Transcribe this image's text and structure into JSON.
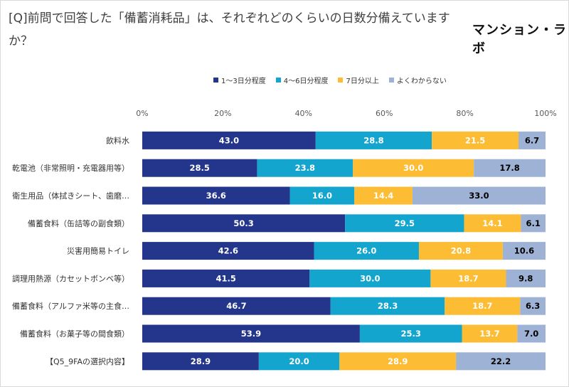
{
  "title": "[Q]前問で回答した「備蓄消耗品」は、それぞれどのくらいの日数分備えていますか？",
  "logo": "マンション・ラボ",
  "colors": {
    "series1": "#24368C",
    "series2": "#14A5CF",
    "series3": "#FCBC33",
    "series4": "#9DB2D4"
  },
  "chart_data": {
    "type": "bar",
    "orientation": "horizontal",
    "stacked": "percent",
    "categories": [
      "飲料水",
      "乾電池（非常照明・充電器用等）",
      "衛生用品（体拭きシート、歯磨…",
      "備蓄食料（缶詰等の副食類）",
      "災害用簡易トイレ",
      "調理用熱源（カセットボンベ等）",
      "備蓄食料（アルファ米等の主食…",
      "備蓄食料（お菓子等の間食類）",
      "【Q5_9FAの選択内容】"
    ],
    "series": [
      {
        "name": "1～3日分程度",
        "values": [
          43.0,
          28.5,
          36.6,
          50.3,
          42.6,
          41.5,
          46.7,
          53.9,
          28.9
        ]
      },
      {
        "name": "4～6日分程度",
        "values": [
          28.8,
          23.8,
          16.0,
          29.5,
          26.0,
          30.0,
          28.3,
          25.3,
          20.0
        ]
      },
      {
        "name": "7日分以上",
        "values": [
          21.5,
          30.0,
          14.4,
          14.1,
          20.8,
          18.7,
          18.7,
          13.7,
          28.9
        ]
      },
      {
        "name": "よくわからない",
        "values": [
          6.7,
          17.8,
          33.0,
          6.1,
          10.6,
          9.8,
          6.3,
          7.0,
          22.2
        ]
      }
    ],
    "xlim": [
      0,
      100
    ],
    "x_ticks": [
      "0%",
      "20%",
      "40%",
      "60%",
      "80%",
      "100%"
    ],
    "grid": false,
    "legend_position": "top"
  }
}
